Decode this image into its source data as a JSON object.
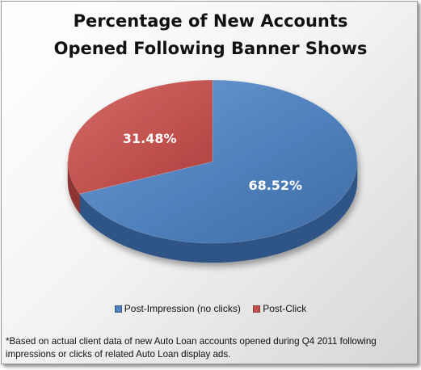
{
  "chart_data": {
    "type": "pie",
    "title_line1": "Percentage of New Accounts",
    "title_line2": "Opened Following Banner Shows",
    "slices": [
      {
        "name": "Post-Impression (no clicks)",
        "value": 68.52,
        "label": "68.52%",
        "color": "#4f81bd",
        "dark": "#2f5485"
      },
      {
        "name": "Post-Click",
        "value": 31.48,
        "label": "31.48%",
        "color": "#c0504d",
        "dark": "#8c3533"
      }
    ],
    "legend_position": "bottom"
  },
  "footnote": "*Based on actual client data of new Auto Loan accounts opened during Q4 2011 following impressions or clicks of related Auto Loan display ads."
}
